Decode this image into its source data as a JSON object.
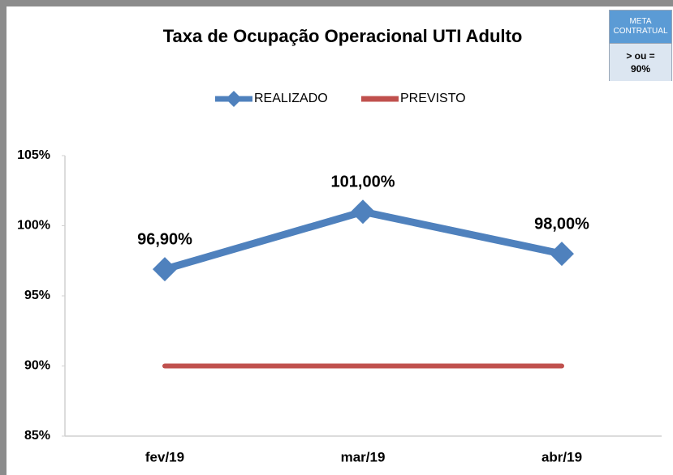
{
  "chart_data": {
    "type": "line",
    "title": "Taxa de Ocupação Operacional UTI Adulto",
    "categories": [
      "fev/19",
      "mar/19",
      "abr/19"
    ],
    "series": [
      {
        "name": "REALIZADO",
        "color": "#4f81bd",
        "values": [
          96.9,
          101,
          98
        ],
        "value_labels": [
          "96,90%",
          "101,00%",
          "98,00%"
        ]
      },
      {
        "name": "PREVISTO",
        "color": "#c0504d",
        "values": [
          90,
          90,
          90
        ]
      }
    ],
    "ylim": [
      85,
      105
    ],
    "yticks": [
      {
        "value": 85,
        "label": "85%"
      },
      {
        "value": 90,
        "label": "90%"
      },
      {
        "value": 95,
        "label": "95%"
      },
      {
        "value": 100,
        "label": "100%"
      },
      {
        "value": 105,
        "label": "105%"
      }
    ],
    "grid": false,
    "legend": "top",
    "meta_box": {
      "header": "META CONTRATUAL",
      "text": "> ou = 90%"
    }
  }
}
